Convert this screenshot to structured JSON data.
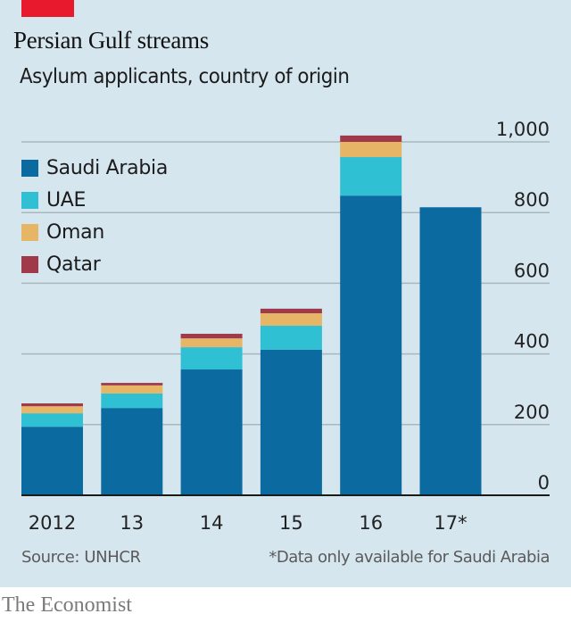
{
  "header": {
    "title": "Persian Gulf streams",
    "subtitle": "Asylum applicants, country of origin",
    "accent_color": "#e8192c"
  },
  "chart_data": {
    "type": "bar",
    "stacked": true,
    "title": "Persian Gulf streams",
    "subtitle": "Asylum applicants, country of origin",
    "xlabel": "",
    "ylabel": "",
    "categories": [
      "2012",
      "13",
      "14",
      "15",
      "16",
      "17*"
    ],
    "series": [
      {
        "name": "Saudi Arabia",
        "color": "#0b6a9f",
        "values": [
          194,
          247,
          356,
          412,
          848,
          815
        ]
      },
      {
        "name": "UAE",
        "color": "#2fc0d4",
        "values": [
          38,
          41,
          63,
          68,
          109,
          null
        ]
      },
      {
        "name": "Oman",
        "color": "#e6b565",
        "values": [
          20,
          23,
          25,
          35,
          43,
          null
        ]
      },
      {
        "name": "Qatar",
        "color": "#a03a4b",
        "values": [
          8,
          7,
          13,
          13,
          18,
          null
        ]
      }
    ],
    "ylim": [
      0,
      1000
    ],
    "yticks": [
      0,
      200,
      400,
      600,
      800,
      1000
    ],
    "ytick_labels": [
      "0",
      "200",
      "400",
      "600",
      "800",
      "1,000"
    ],
    "y_axis_side": "right",
    "grid": true,
    "legend_position": "top-left"
  },
  "legend": {
    "items": [
      {
        "label": "Saudi Arabia",
        "color": "#0b6a9f"
      },
      {
        "label": "UAE",
        "color": "#2fc0d4"
      },
      {
        "label": "Oman",
        "color": "#e6b565"
      },
      {
        "label": "Qatar",
        "color": "#a03a4b"
      }
    ]
  },
  "footer": {
    "source": "Source: UNHCR",
    "note": "*Data only available for Saudi Arabia",
    "brand": "The Economist"
  }
}
